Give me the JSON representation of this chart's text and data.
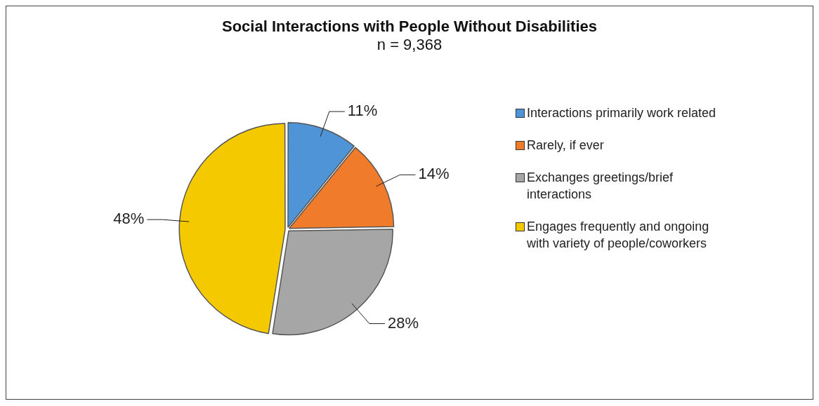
{
  "chart_data": {
    "type": "pie",
    "title": "Social Interactions with People Without Disabilities",
    "subtitle": "n = 9,368",
    "categories": [
      "Interactions primarily work related",
      "Rarely, if ever",
      "Exchanges greetings/brief interactions",
      "Engages frequently and ongoing with variety of people/coworkers"
    ],
    "values": [
      11,
      14,
      28,
      48
    ],
    "colors": [
      "#4f94d6",
      "#f07b2a",
      "#a6a6a6",
      "#f5c900"
    ],
    "value_labels": [
      "11%",
      "14%",
      "28%",
      "48%"
    ],
    "legend": "right"
  }
}
